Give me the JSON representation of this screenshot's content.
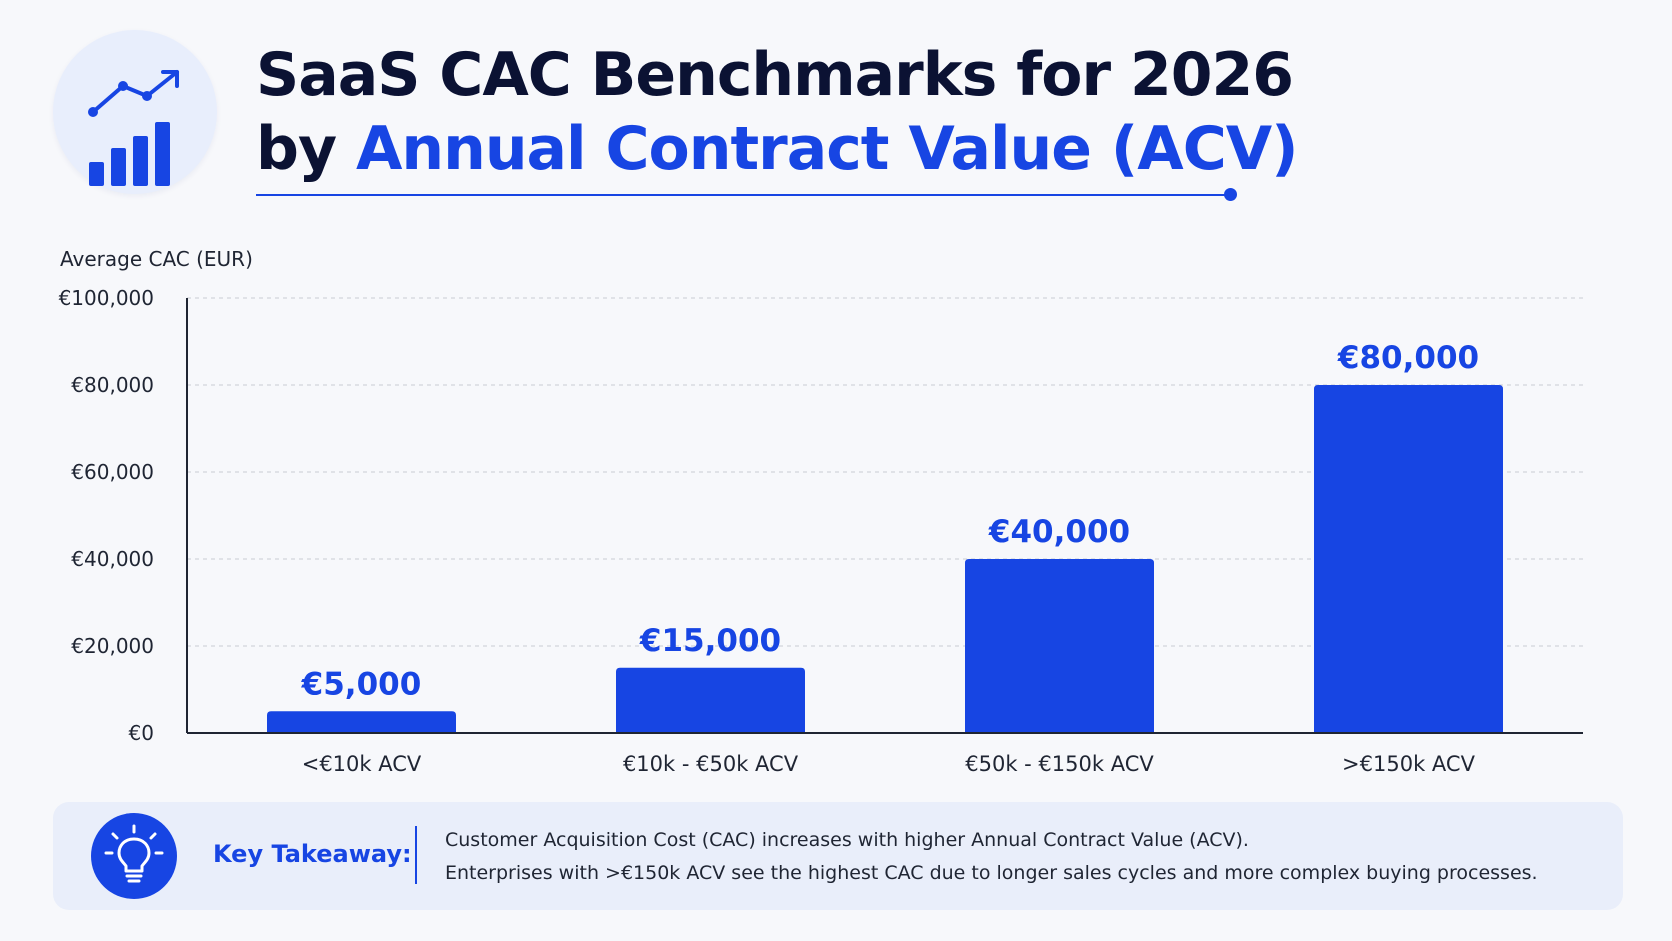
{
  "header": {
    "icon": "bar-chart-trend-icon",
    "title_line1": "SaaS CAC Benchmarks for 2026",
    "title_line2_prefix": "by",
    "title_line2_accent": "Annual Contract Value (ACV)"
  },
  "colors": {
    "accent": "#1745e3",
    "title_text": "#0b1233",
    "panel_bg": "#e9eefa",
    "page_bg": "#f7f8fb"
  },
  "chart_data": {
    "type": "bar",
    "ylabel": "Average CAC (EUR)",
    "xlabel": "",
    "categories": [
      "<€10k ACV",
      "€10k - €50k ACV",
      "€50k - €150k ACV",
      ">€150k ACV"
    ],
    "values": [
      5000,
      15000,
      40000,
      80000
    ],
    "data_labels": [
      "€5,000",
      "€15,000",
      "€40,000",
      "€80,000"
    ],
    "ylim": [
      0,
      100000
    ],
    "yticks": [
      0,
      20000,
      40000,
      60000,
      80000,
      100000
    ],
    "ytick_labels": [
      "€0",
      "€20,000",
      "€40,000",
      "€60,000",
      "€80,000",
      "€100,000"
    ],
    "grid": true,
    "bar_color": "#1745e3"
  },
  "takeaway": {
    "icon": "lightbulb-icon",
    "label": "Key Takeaway:",
    "line1": "Customer Acquisition Cost (CAC) increases with higher Annual Contract Value (ACV).",
    "line2": "Enterprises with >€150k ACV see the highest CAC due to longer sales cycles and more complex buying processes."
  }
}
